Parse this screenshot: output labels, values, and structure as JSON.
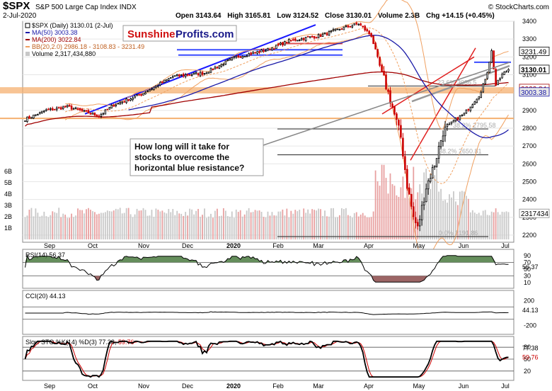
{
  "header": {
    "symbol": "$SPX",
    "name": "S&P 500 Large Cap Index",
    "exchange": "INDX",
    "date": "2-Jul-2020",
    "open_label": "Open",
    "open": "3143.64",
    "high_label": "High",
    "high": "3165.81",
    "low_label": "Low",
    "low": "3124.52",
    "close_label": "Close",
    "close": "3130.01",
    "volume_label": "Volume",
    "volume": "2.3B",
    "chg_label": "Chg",
    "chg": "+14.15 (+0.45%)",
    "watermark": "© StockCharts.com"
  },
  "logo": {
    "part1": "Sunshine",
    "part2": "Profits.com"
  },
  "legend": {
    "price": "$SPX (Daily) 3130.01 (2-Jul)",
    "ma50": "MA(50) 3003.38",
    "ma200": "MA(200) 3022.84",
    "bb": "BB(20,2.0) 2986.18 - 3108.83 - 3231.49",
    "volume": "Volume 2,317,434,880"
  },
  "colors": {
    "up": "#000000",
    "down": "#cc0000",
    "ma50": "#1a1aa8",
    "ma200": "#a00000",
    "bb": "#f0a060",
    "trend_blue": "#1a1aff",
    "resistance": "#3a4cff",
    "support_orange": "#f5b070",
    "volume": "#c8c8c8",
    "volume_red": "#e8a0a0",
    "grid": "#e6e6e6",
    "rsi_fill_green": "#4a7a40",
    "rsi_fill_red": "#8b4a4a",
    "slow_k": "#000000",
    "slow_d": "#cc0000"
  },
  "annotation": {
    "line1": "How long will it take for",
    "line2": "stocks to overcome the",
    "line3": "horizontal blue resistance?"
  },
  "fib_labels": [
    "23.6% 3036.5",
    "38.2% 2795.58",
    "38.2% 2650.81",
    "0.0% 2191.86"
  ],
  "price_badges": {
    "bb_upper": "3231.49",
    "close": "3130.01",
    "ma": "3022.84",
    "ma50": "3003.38"
  },
  "months": [
    "Sep",
    "Oct",
    "Nov",
    "Dec",
    "2020",
    "Feb",
    "Mar",
    "Apr",
    "May",
    "Jun",
    "Jul"
  ],
  "chart_data": [
    {
      "type": "candlestick",
      "title": "$SPX (Daily)",
      "y_ticks": [
        "3400",
        "3300",
        "3200",
        "3100",
        "3000",
        "2900",
        "2800",
        "2700",
        "2600",
        "2500",
        "2400",
        "2300",
        "2200"
      ],
      "y_range": [
        2160,
        3400
      ],
      "period": "Aug 2019 - 2-Jul-2020",
      "key_points": [
        {
          "date": "Aug 2019",
          "close": 2850
        },
        {
          "date": "Oct 2019",
          "close": 2900
        },
        {
          "date": "Dec 2019",
          "close": 3150
        },
        {
          "date": "19-Feb-2020",
          "close": 3386
        },
        {
          "date": "23-Mar-2020",
          "close": 2237
        },
        {
          "date": "8-Jun-2020",
          "close": 3232
        },
        {
          "date": "2-Jul-2020",
          "close": 3130.01
        }
      ],
      "volume_ticks": [
        "6B",
        "5B",
        "4B",
        "3B",
        "2B",
        "1B"
      ],
      "volume_last": "2317434"
    },
    {
      "type": "line",
      "title": "RSI(14) 56.37",
      "y_ticks": [
        "90",
        "70",
        "50",
        "30",
        "10"
      ],
      "last": "56.37"
    },
    {
      "type": "line",
      "title": "CCI(20) 44.13",
      "y_ticks": [
        "200",
        "44.13",
        "-200"
      ],
      "last": "44.13"
    },
    {
      "type": "line",
      "title": "Slow STO %K(14) %D(3) 77.38, 59.76",
      "series": [
        {
          "name": "%K",
          "last": "77.38"
        },
        {
          "name": "%D",
          "last": "59.76"
        }
      ],
      "y_ticks": [
        "80",
        "50",
        "20"
      ]
    }
  ]
}
